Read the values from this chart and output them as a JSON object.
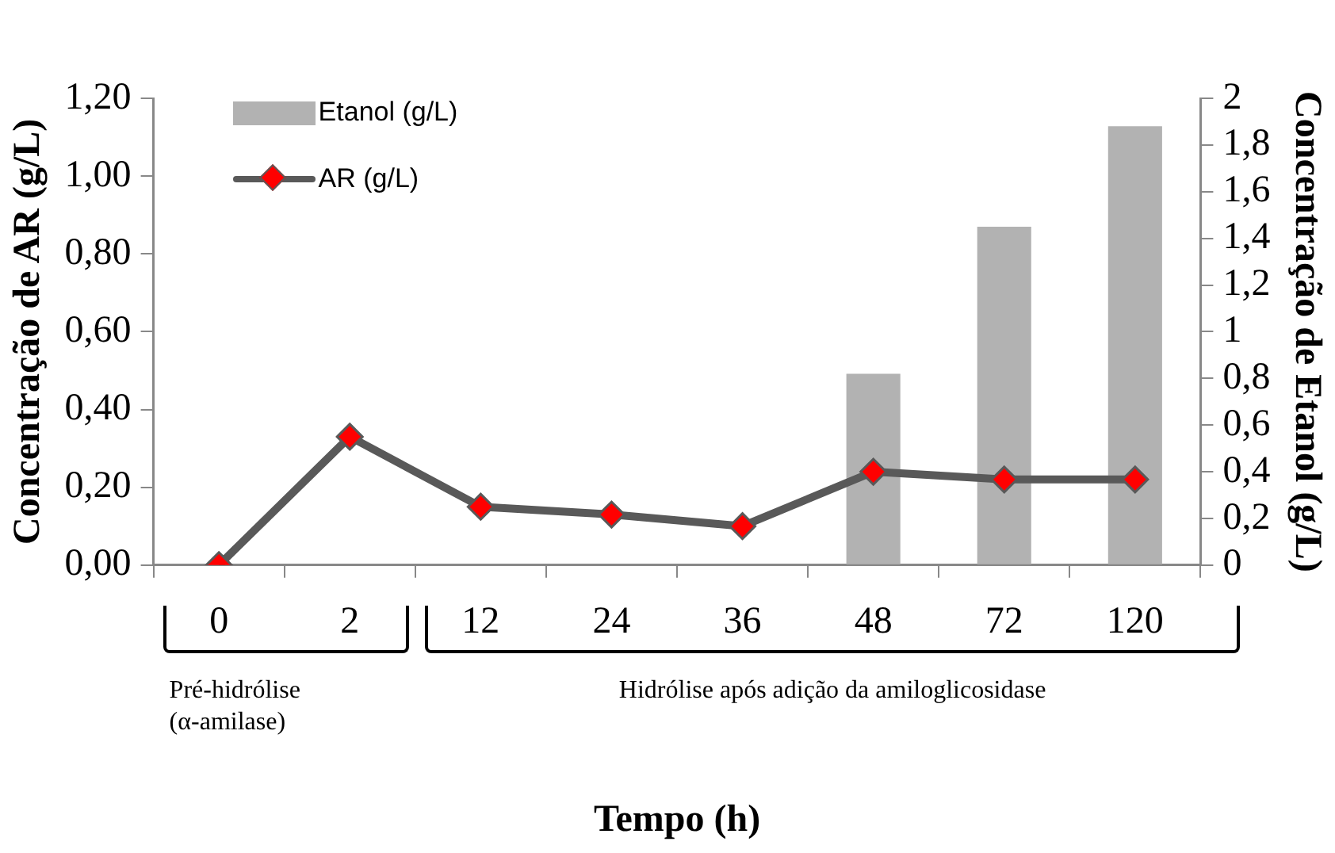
{
  "chart_data": {
    "type": "line",
    "categories": [
      "0",
      "2",
      "12",
      "24",
      "36",
      "48",
      "72",
      "120"
    ],
    "xlabel": "Tempo (h)",
    "ylabel": "Concentração de AR (g/L)",
    "y2label": "Concentração de Etanol (g/L)",
    "series": [
      {
        "name": "Etanol (g/L)",
        "type": "bar",
        "axis": "y2",
        "color": "#b2b2b2",
        "values": [
          null,
          null,
          null,
          null,
          null,
          0.82,
          1.45,
          1.88
        ]
      },
      {
        "name": "AR (g/L)",
        "color": "#595959",
        "marker": "diamond",
        "values": [
          0,
          0.33,
          0.15,
          0.13,
          0.1,
          0.24,
          0.22,
          0.22
        ]
      }
    ],
    "ylim": [
      0,
      1.2
    ],
    "yticks": [
      {
        "value": 0,
        "label": "0,00"
      },
      {
        "value": 0.2,
        "label": "0,20"
      },
      {
        "value": 0.4,
        "label": "0,40"
      },
      {
        "value": 0.6,
        "label": "0,60"
      },
      {
        "value": 0.8,
        "label": "0,80"
      },
      {
        "value": 1,
        "label": "1,00"
      },
      {
        "value": 1.2,
        "label": "1,20"
      }
    ],
    "y2lim": [
      0,
      2
    ],
    "y2ticks": [
      0,
      {
        "value": 0.2,
        "label": "0,2"
      },
      {
        "value": 0.4,
        "label": "0,4"
      },
      {
        "value": 0.6,
        "label": "0,6"
      },
      {
        "value": 0.8,
        "label": "0,8"
      },
      1,
      {
        "value": 1.2,
        "label": "1,2"
      },
      {
        "value": 1.4,
        "label": "1,4"
      },
      {
        "value": 1.6,
        "label": "1,6"
      },
      {
        "value": 1.8,
        "label": "1,8"
      },
      2
    ],
    "annotations": [
      "Pré-hidrólise\n(α-amilase)",
      "Hidrólise após adição da amiloglicosidase"
    ],
    "grid": false,
    "legend": "top left"
  }
}
